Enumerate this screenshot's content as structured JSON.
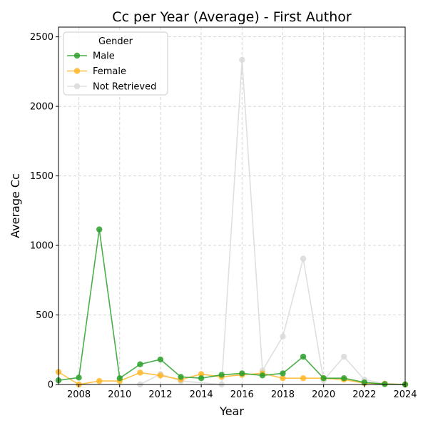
{
  "chart_data": {
    "type": "line",
    "title": "Cc per Year (Average) - First Author",
    "xlabel": "Year",
    "ylabel": "Average Cc",
    "xlim": [
      2007,
      2024
    ],
    "ylim": [
      0,
      2570
    ],
    "xticks": [
      2008,
      2010,
      2012,
      2014,
      2016,
      2018,
      2020,
      2022,
      2024
    ],
    "yticks": [
      0,
      500,
      1000,
      1500,
      2000,
      2500
    ],
    "grid": true,
    "legend": {
      "title": "Gender",
      "position": "top-left"
    },
    "series": [
      {
        "name": "Male",
        "color": "#2ca02c",
        "points": [
          [
            2007,
            30
          ],
          [
            2008,
            50
          ],
          [
            2009,
            1115
          ],
          [
            2010,
            45
          ],
          [
            2011,
            145
          ],
          [
            2012,
            180
          ],
          [
            2013,
            55
          ],
          [
            2014,
            45
          ],
          [
            2015,
            70
          ],
          [
            2016,
            80
          ],
          [
            2017,
            65
          ],
          [
            2018,
            80
          ],
          [
            2019,
            200
          ],
          [
            2020,
            45
          ],
          [
            2021,
            45
          ],
          [
            2022,
            15
          ],
          [
            2023,
            3
          ],
          [
            2024,
            0
          ]
        ]
      },
      {
        "name": "Female",
        "color": "#ffb627",
        "points": [
          [
            2007,
            90
          ],
          [
            2008,
            0
          ],
          [
            2009,
            25
          ],
          [
            2010,
            25
          ],
          [
            2011,
            85
          ],
          [
            2012,
            65
          ],
          [
            2013,
            35
          ],
          [
            2014,
            75
          ],
          [
            2015,
            55
          ],
          [
            2016,
            70
          ],
          [
            2017,
            80
          ],
          [
            2018,
            45
          ],
          [
            2019,
            45
          ],
          [
            2020,
            45
          ],
          [
            2021,
            35
          ],
          [
            2022,
            10
          ],
          [
            2023,
            5
          ],
          [
            2024,
            0
          ]
        ]
      },
      {
        "name": "Not Retrieved",
        "color": "#d9d9d9",
        "points": [
          [
            2011,
            0
          ],
          [
            2012,
            75
          ],
          [
            2013,
            25
          ],
          [
            2015,
            0
          ],
          [
            2016,
            2335
          ],
          [
            2017,
            100
          ],
          [
            2018,
            345
          ],
          [
            2019,
            905
          ],
          [
            2020,
            30
          ],
          [
            2021,
            200
          ],
          [
            2022,
            35
          ],
          [
            2023,
            5
          ],
          [
            2024,
            0
          ]
        ]
      }
    ]
  }
}
